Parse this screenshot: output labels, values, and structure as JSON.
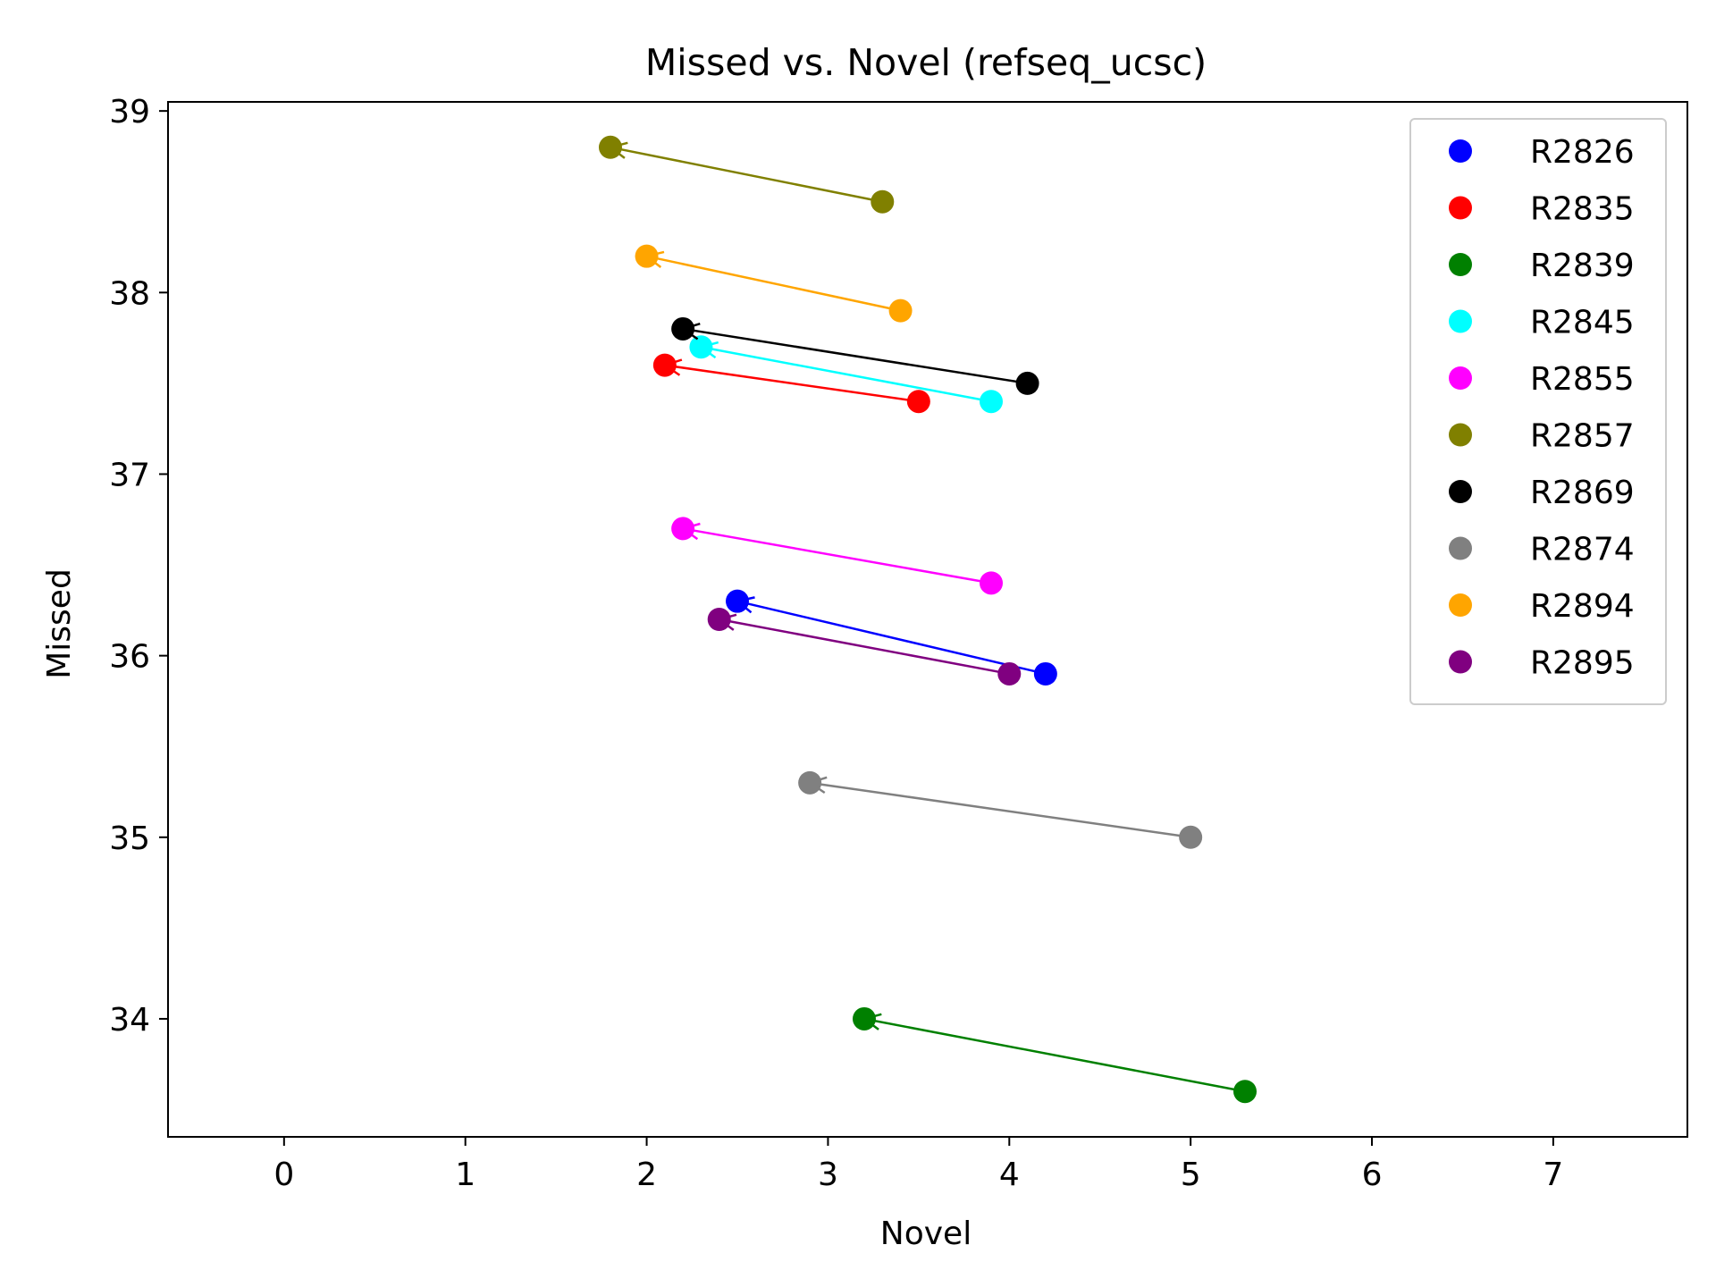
{
  "chart_data": {
    "type": "scatter",
    "title": "Missed vs. Novel (refseq_ucsc)",
    "xlabel": "Novel",
    "ylabel": "Missed",
    "xlim": [
      -0.64,
      7.74
    ],
    "ylim": [
      33.35,
      39.05
    ],
    "xticks": [
      0,
      1,
      2,
      3,
      4,
      5,
      6,
      7
    ],
    "yticks": [
      34,
      35,
      36,
      37,
      38,
      39
    ],
    "grid": false,
    "legend_position": "top-right",
    "series": [
      {
        "name": "R2826",
        "color": "#0000ff",
        "from": [
          4.2,
          35.9
        ],
        "to": [
          2.5,
          36.3
        ]
      },
      {
        "name": "R2835",
        "color": "#ff0000",
        "from": [
          3.5,
          37.4
        ],
        "to": [
          2.1,
          37.6
        ]
      },
      {
        "name": "R2839",
        "color": "#008000",
        "from": [
          5.3,
          33.6
        ],
        "to": [
          3.2,
          34.0
        ]
      },
      {
        "name": "R2845",
        "color": "#00ffff",
        "from": [
          3.9,
          37.4
        ],
        "to": [
          2.3,
          37.7
        ]
      },
      {
        "name": "R2855",
        "color": "#ff00ff",
        "from": [
          3.9,
          36.4
        ],
        "to": [
          2.2,
          36.7
        ]
      },
      {
        "name": "R2857",
        "color": "#808000",
        "from": [
          3.3,
          38.5
        ],
        "to": [
          1.8,
          38.8
        ]
      },
      {
        "name": "R2869",
        "color": "#000000",
        "from": [
          4.1,
          37.5
        ],
        "to": [
          2.2,
          37.8
        ]
      },
      {
        "name": "R2874",
        "color": "#808080",
        "from": [
          5.0,
          35.0
        ],
        "to": [
          2.9,
          35.3
        ]
      },
      {
        "name": "R2894",
        "color": "#ffa500",
        "from": [
          3.4,
          37.9
        ],
        "to": [
          2.0,
          38.2
        ]
      },
      {
        "name": "R2895",
        "color": "#800080",
        "from": [
          4.0,
          35.9
        ],
        "to": [
          2.4,
          36.2
        ]
      }
    ]
  }
}
